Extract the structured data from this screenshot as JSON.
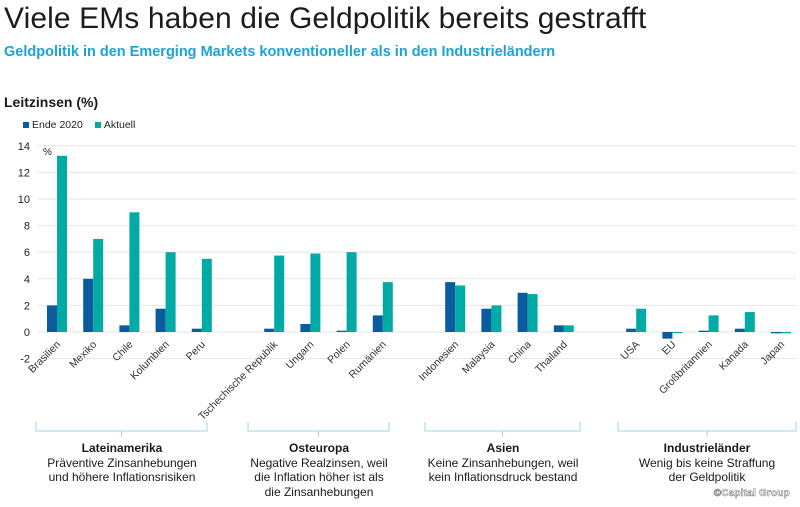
{
  "title": "Viele EMs haben die Geldpolitik bereits gestrafft",
  "subtitle": "Geldpolitik in den Emerging Markets konventioneller als in den Industrieländern",
  "chart_heading": "Leitzinsen (%)",
  "colors": {
    "ende_2020": "#0b5c9e",
    "aktuell": "#00aba5",
    "subtitle": "#1aa3d9",
    "grid": "#e6e6e6",
    "bracket": "#9fd3ee"
  },
  "legend": [
    {
      "label": "Ende 2020",
      "color": "#0b5c9e"
    },
    {
      "label": "Aktuell",
      "color": "#00aba5"
    }
  ],
  "groups": [
    {
      "name": "Lateinamerika",
      "description": [
        "Präventive Zinsanhebungen",
        "und höhere Inflationsrisiken"
      ]
    },
    {
      "name": "Osteuropa",
      "description": [
        "Negative Realzinsen, weil",
        "die Inflation höher ist als",
        "die Zinsanhebungen"
      ]
    },
    {
      "name": "Asien",
      "description": [
        "Keine Zinsanhebungen, weil",
        "kein Inflationsdruck bestand"
      ]
    },
    {
      "name": "Industrieländer",
      "description": [
        "Wenig bis keine Straffung",
        "der Geldpolitik"
      ]
    }
  ],
  "copyright": "©Capital Group",
  "chart_data": {
    "type": "bar",
    "title": "Leitzinsen (%)",
    "xlabel": "",
    "ylabel": "%",
    "ylim": [
      -2,
      14
    ],
    "yticks": [
      -2,
      0,
      2,
      4,
      6,
      8,
      10,
      12,
      14
    ],
    "grid": true,
    "legend_position": "top-left",
    "categories": [
      "Brasilien",
      "Mexiko",
      "Chile",
      "Kolumbien",
      "Peru",
      "",
      "Tschechische Republik",
      "Ungarn",
      "Polen",
      "Rumänien",
      "",
      "Indonesien",
      "Malaysia",
      "China",
      "Thailand",
      "",
      "USA",
      "EU",
      "Großbritannien",
      "Kanada",
      "Japan"
    ],
    "series": [
      {
        "name": "Ende 2020",
        "values": [
          2.0,
          4.0,
          0.5,
          1.75,
          0.25,
          null,
          0.25,
          0.6,
          0.1,
          1.25,
          null,
          3.75,
          1.75,
          2.95,
          0.5,
          null,
          0.25,
          -0.5,
          0.1,
          0.25,
          -0.1
        ]
      },
      {
        "name": "Aktuell",
        "values": [
          13.25,
          7.0,
          9.0,
          6.0,
          5.5,
          null,
          5.75,
          5.9,
          6.0,
          3.75,
          null,
          3.5,
          2.0,
          2.85,
          0.5,
          null,
          1.75,
          0.0,
          1.25,
          1.5,
          -0.1
        ]
      }
    ]
  }
}
